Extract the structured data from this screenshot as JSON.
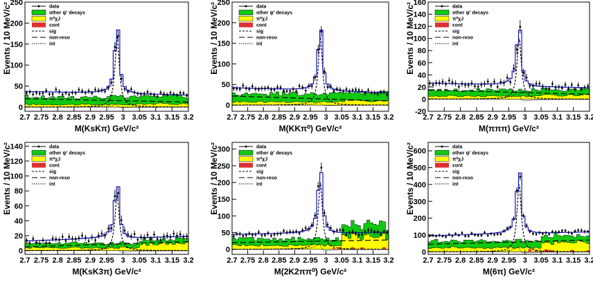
{
  "chart_data": [
    {
      "type": "histogram-fit",
      "xlabel": "M(KsKπ) GeV/c²",
      "ylabel": "Events / 10 MeV/c²",
      "xlim": [
        2.7,
        3.2
      ],
      "ylim": [
        -10,
        250
      ],
      "yticks": [
        0,
        50,
        100,
        150,
        200,
        250
      ],
      "xticks": [
        "2.7",
        "2.75",
        "2.8",
        "2.85",
        "2.9",
        "2.95",
        "3",
        "3.05",
        "3.1",
        "3.15",
        "3.2"
      ],
      "legend": [
        "data",
        "other ψ' decays",
        "π⁰χJ",
        "cont",
        "sig",
        "non-reso",
        "int"
      ],
      "legend_placement": "top-left",
      "model": {
        "peak": 2.982,
        "width": 0.016,
        "signal": 170,
        "nonreso_start": 20,
        "nonreso_end": 12,
        "other": 18,
        "yellow": 6,
        "cont": 0,
        "int_amp": 14
      }
    },
    {
      "type": "histogram-fit",
      "xlabel": "M(KKπ⁰) GeV/c²",
      "ylabel": "Events / 10 MeV/c²",
      "xlim": [
        2.7,
        3.2
      ],
      "ylim": [
        -15,
        250
      ],
      "yticks": [
        0,
        50,
        100,
        150,
        200,
        250
      ],
      "xticks": [
        "2.7",
        "2.75",
        "2.8",
        "2.85",
        "2.9",
        "2.95",
        "3",
        "3.05",
        "3.1",
        "3.15",
        "3.2"
      ],
      "legend": [
        "data",
        "other ψ' decays",
        "π⁰χJ",
        "cont",
        "sig",
        "non-reso",
        "int"
      ],
      "legend_placement": "top-left",
      "model": {
        "peak": 2.982,
        "width": 0.016,
        "signal": 165,
        "nonreso_start": 22,
        "nonreso_end": 10,
        "other": 20,
        "yellow": 8,
        "cont": 0,
        "int_amp": 14
      }
    },
    {
      "type": "histogram-fit",
      "xlabel": "M(πππ) GeV/c²",
      "ylabel": "Events / 10 MeV/c²",
      "xlim": [
        2.7,
        3.2
      ],
      "ylim": [
        -20,
        160
      ],
      "yticks": [
        -20,
        0,
        20,
        40,
        60,
        80,
        100,
        120,
        140,
        160
      ],
      "xticks": [
        "2.7",
        "2.75",
        "2.8",
        "2.85",
        "2.9",
        "2.95",
        "3",
        "3.05",
        "3.1",
        "3.15",
        "3.2"
      ],
      "legend": [
        "data",
        "other ψ' decays",
        "π⁰χJ",
        "cont",
        "sig",
        "non-reso",
        "int"
      ],
      "legend_placement": "top-left",
      "model": {
        "peak": 2.982,
        "width": 0.016,
        "signal": 100,
        "nonreso_start": 15,
        "nonreso_end": 8,
        "other": 10,
        "yellow": 5,
        "cont": 0,
        "int_amp": 25
      }
    },
    {
      "type": "histogram-fit",
      "xlabel": "M(KsK3π) GeV/c²",
      "ylabel": "Events / 10 MeV/c²",
      "xlim": [
        2.7,
        3.2
      ],
      "ylim": [
        -5,
        145
      ],
      "yticks": [
        0,
        20,
        40,
        60,
        80,
        100,
        120,
        140
      ],
      "xticks": [
        "2.7",
        "2.75",
        "2.8",
        "2.85",
        "2.9",
        "2.95",
        "3",
        "3.05",
        "3.1",
        "3.15",
        "3.2"
      ],
      "legend": [
        "data",
        "other ψ' decays",
        "π⁰χJ",
        "cont",
        "sig",
        "non-reso",
        "int"
      ],
      "legend_placement": "top-left",
      "model": {
        "peak": 2.982,
        "width": 0.016,
        "signal": 75,
        "nonreso_start": 5,
        "nonreso_end": 12,
        "other": 6,
        "yellow": 4,
        "cont": 0,
        "int_amp": 20
      }
    },
    {
      "type": "histogram-fit",
      "xlabel": "M(2K2ππ⁰) GeV/c²",
      "ylabel": "Events / 10 MeV/c²",
      "xlim": [
        2.7,
        3.2
      ],
      "ylim": [
        -15,
        320
      ],
      "yticks": [
        0,
        50,
        100,
        150,
        200,
        250,
        300
      ],
      "xticks": [
        "2.7",
        "2.75",
        "2.8",
        "2.85",
        "2.9",
        "2.95",
        "3",
        "3.05",
        "3.1",
        "3.15",
        "3.2"
      ],
      "legend": [
        "data",
        "other ψ' decays",
        "π⁰χJ",
        "cont",
        "sig",
        "non-reso",
        "int"
      ],
      "legend_placement": "top-left",
      "model": {
        "peak": 2.982,
        "width": 0.016,
        "signal": 200,
        "nonreso_start": 20,
        "nonreso_end": 28,
        "other": 20,
        "yellow": 12,
        "cont": 5,
        "int_amp": 35
      }
    },
    {
      "type": "histogram-fit",
      "xlabel": "M(6π) GeV/c²",
      "ylabel": "Events / 10 MeV/c²",
      "xlim": [
        2.7,
        3.2
      ],
      "ylim": [
        -15,
        650
      ],
      "yticks": [
        0,
        100,
        200,
        300,
        400,
        500,
        600
      ],
      "xticks": [
        "2.7",
        "2.75",
        "2.8",
        "2.85",
        "2.9",
        "2.95",
        "3",
        "3.05",
        "3.1",
        "3.15",
        "3.2"
      ],
      "legend": [
        "data",
        "other ψ' decays",
        "π⁰χJ",
        "cont",
        "sig",
        "non-reso",
        "int"
      ],
      "legend_placement": "top-left",
      "model": {
        "peak": 2.982,
        "width": 0.016,
        "signal": 400,
        "nonreso_start": 45,
        "nonreso_end": 70,
        "other": 40,
        "yellow": 25,
        "cont": 10,
        "int_amp": 60
      }
    }
  ],
  "colors": {
    "fit": "#1010c8",
    "other": "#10c810",
    "yellow": "#ffff00",
    "cont": "#e03030",
    "data": "#000000",
    "frame": "#000000"
  }
}
